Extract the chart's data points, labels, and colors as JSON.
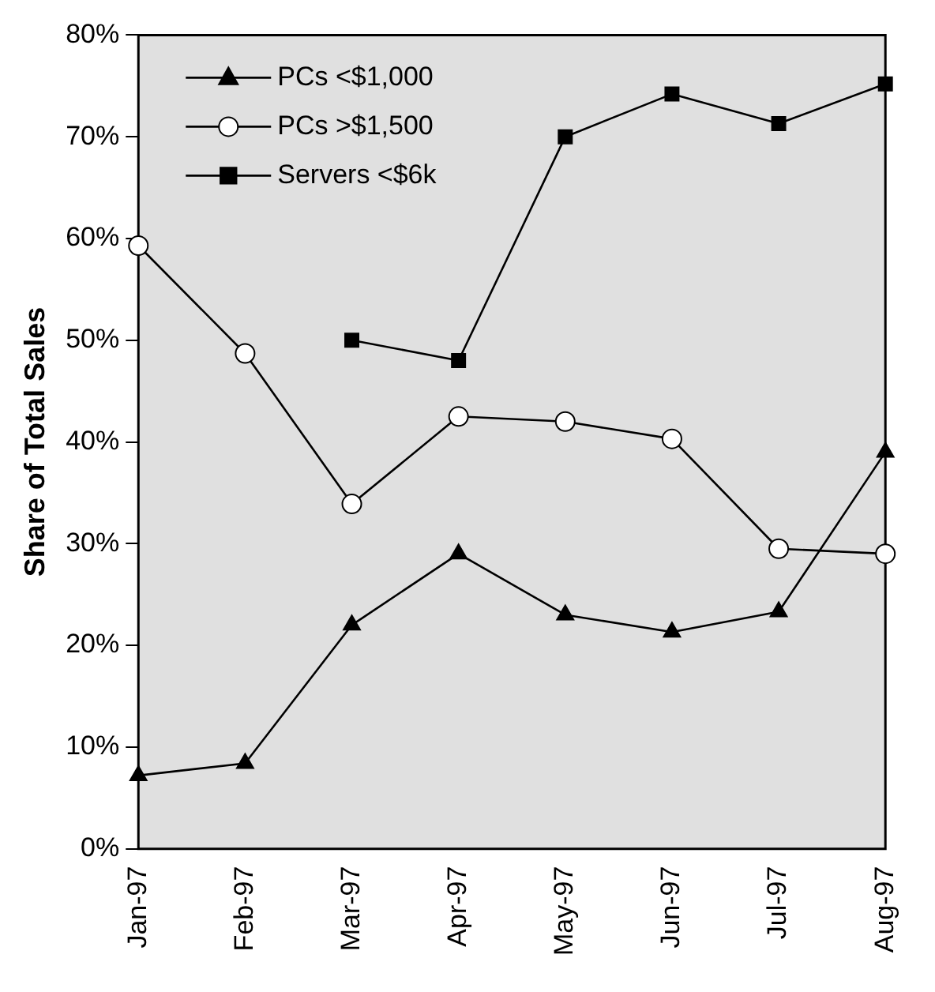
{
  "chart_data": {
    "type": "line",
    "ylabel": "Share of Total Sales",
    "categories": [
      "Jan-97",
      "Feb-97",
      "Mar-97",
      "Apr-97",
      "May-97",
      "Jun-97",
      "Jul-97",
      "Aug-97"
    ],
    "series": [
      {
        "name": "PCs <$1,000",
        "color": "#000000",
        "marker": "triangle",
        "values": [
          7.2,
          8.4,
          22,
          29,
          23,
          21.3,
          23.3,
          39
        ]
      },
      {
        "name": "PCs >$1,500",
        "color": "#000000",
        "marker": "circle",
        "values": [
          59.3,
          48.7,
          33.9,
          42.5,
          42,
          40.3,
          29.5,
          29
        ]
      },
      {
        "name": "Servers <$6k",
        "color": "#000000",
        "marker": "square",
        "values": [
          null,
          null,
          50,
          48,
          70,
          74.2,
          71.3,
          75.2
        ]
      }
    ],
    "ylim": [
      0,
      80
    ],
    "yticks": [
      {
        "value": 0,
        "label": "0%"
      },
      {
        "value": 10,
        "label": "10%"
      },
      {
        "value": 20,
        "label": "20%"
      },
      {
        "value": 30,
        "label": "30%"
      },
      {
        "value": 40,
        "label": "40%"
      },
      {
        "value": 50,
        "label": "50%"
      },
      {
        "value": 60,
        "label": "60%"
      },
      {
        "value": 70,
        "label": "70%"
      },
      {
        "value": 80,
        "label": "80%"
      }
    ],
    "grid": false,
    "legend": "top left",
    "line_style": "solid"
  }
}
